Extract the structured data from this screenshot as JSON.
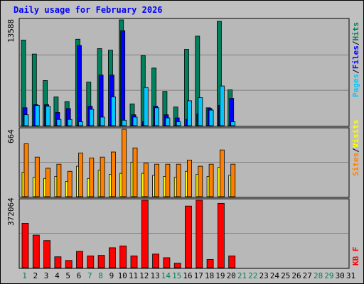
{
  "title": "Daily usage for February 2026",
  "colors": {
    "background": "#c0c0c0",
    "panel": "#b8b8b8",
    "grid": "#808080",
    "hits": "#00805c",
    "files": "#0000ff",
    "pages": "#00c8ff",
    "visits": "#ffff00",
    "sites": "#ff8000",
    "kbytes": "#ff0000",
    "title": "#0000ff",
    "weekend_day": "#00805c"
  },
  "chart_data": [
    {
      "type": "bar",
      "name": "hits-files-pages",
      "ymax_label": "13588",
      "ylim": [
        0,
        13588
      ],
      "legend": [
        "Pages",
        "Files",
        "Hits"
      ],
      "categories": [
        "1",
        "2",
        "3",
        "4",
        "5",
        "6",
        "7",
        "8",
        "9",
        "10",
        "11",
        "12",
        "13",
        "14",
        "15",
        "16",
        "17",
        "18",
        "19",
        "20"
      ],
      "series": [
        {
          "name": "Hits",
          "values": [
            11000,
            9200,
            5800,
            3700,
            3100,
            11100,
            5600,
            9900,
            9700,
            13588,
            2800,
            9000,
            7400,
            4400,
            2400,
            9800,
            11500,
            2300,
            13400,
            4600
          ]
        },
        {
          "name": "Files",
          "values": [
            2300,
            2700,
            2700,
            1700,
            2200,
            10300,
            2500,
            6500,
            6500,
            12200,
            1400,
            500,
            2500,
            1400,
            1000,
            800,
            1500,
            2200,
            2600,
            3500
          ]
        },
        {
          "name": "Pages",
          "values": [
            1400,
            2600,
            2500,
            800,
            800,
            500,
            2100,
            1100,
            3700,
            700,
            1100,
            4900,
            2300,
            1000,
            500,
            3200,
            3600,
            2000,
            5100,
            500
          ]
        }
      ]
    },
    {
      "type": "bar",
      "name": "visits-sites",
      "ymax_label": "664",
      "ylim": [
        0,
        664
      ],
      "legend": [
        "Sites",
        "Visits"
      ],
      "categories": [
        "1",
        "2",
        "3",
        "4",
        "5",
        "6",
        "7",
        "8",
        "9",
        "10",
        "11",
        "12",
        "13",
        "14",
        "15",
        "16",
        "17",
        "18",
        "19",
        "20"
      ],
      "series": [
        {
          "name": "Visits",
          "values": [
            240,
            190,
            180,
            200,
            150,
            300,
            180,
            260,
            220,
            230,
            340,
            230,
            210,
            200,
            190,
            250,
            220,
            200,
            290,
            210
          ]
        },
        {
          "name": "Sites",
          "values": [
            520,
            390,
            280,
            320,
            250,
            430,
            380,
            390,
            440,
            664,
            480,
            330,
            320,
            320,
            320,
            360,
            300,
            320,
            460,
            320
          ]
        }
      ]
    },
    {
      "type": "bar",
      "name": "kbytes",
      "ymax_label": "372064",
      "ylim": [
        0,
        372064
      ],
      "legend": [
        "KB F"
      ],
      "categories": [
        "1",
        "2",
        "3",
        "4",
        "5",
        "6",
        "7",
        "8",
        "9",
        "10",
        "11",
        "12",
        "13",
        "14",
        "15",
        "16",
        "17",
        "18",
        "19",
        "20"
      ],
      "series": [
        {
          "name": "KB F",
          "values": [
            245000,
            180000,
            150000,
            60000,
            40000,
            90000,
            65000,
            68000,
            110000,
            120000,
            65000,
            372064,
            75000,
            55000,
            25000,
            340000,
            372064,
            45000,
            355000,
            65000
          ]
        }
      ]
    }
  ],
  "x_axis": {
    "days": [
      "1",
      "2",
      "3",
      "4",
      "5",
      "6",
      "7",
      "8",
      "9",
      "10",
      "11",
      "12",
      "13",
      "14",
      "15",
      "16",
      "17",
      "18",
      "19",
      "20",
      "21",
      "22",
      "23",
      "24",
      "25",
      "26",
      "27",
      "28",
      "29",
      "30",
      "31"
    ],
    "weekend_days": [
      "1",
      "7",
      "8",
      "14",
      "15",
      "21",
      "22",
      "28",
      "29"
    ]
  },
  "legend_labels": {
    "pages": "Pages",
    "files": "Files",
    "hits": "Hits",
    "sites": "Sites",
    "visits": "Visits",
    "kbytes": "KB F",
    "separator": "/"
  }
}
